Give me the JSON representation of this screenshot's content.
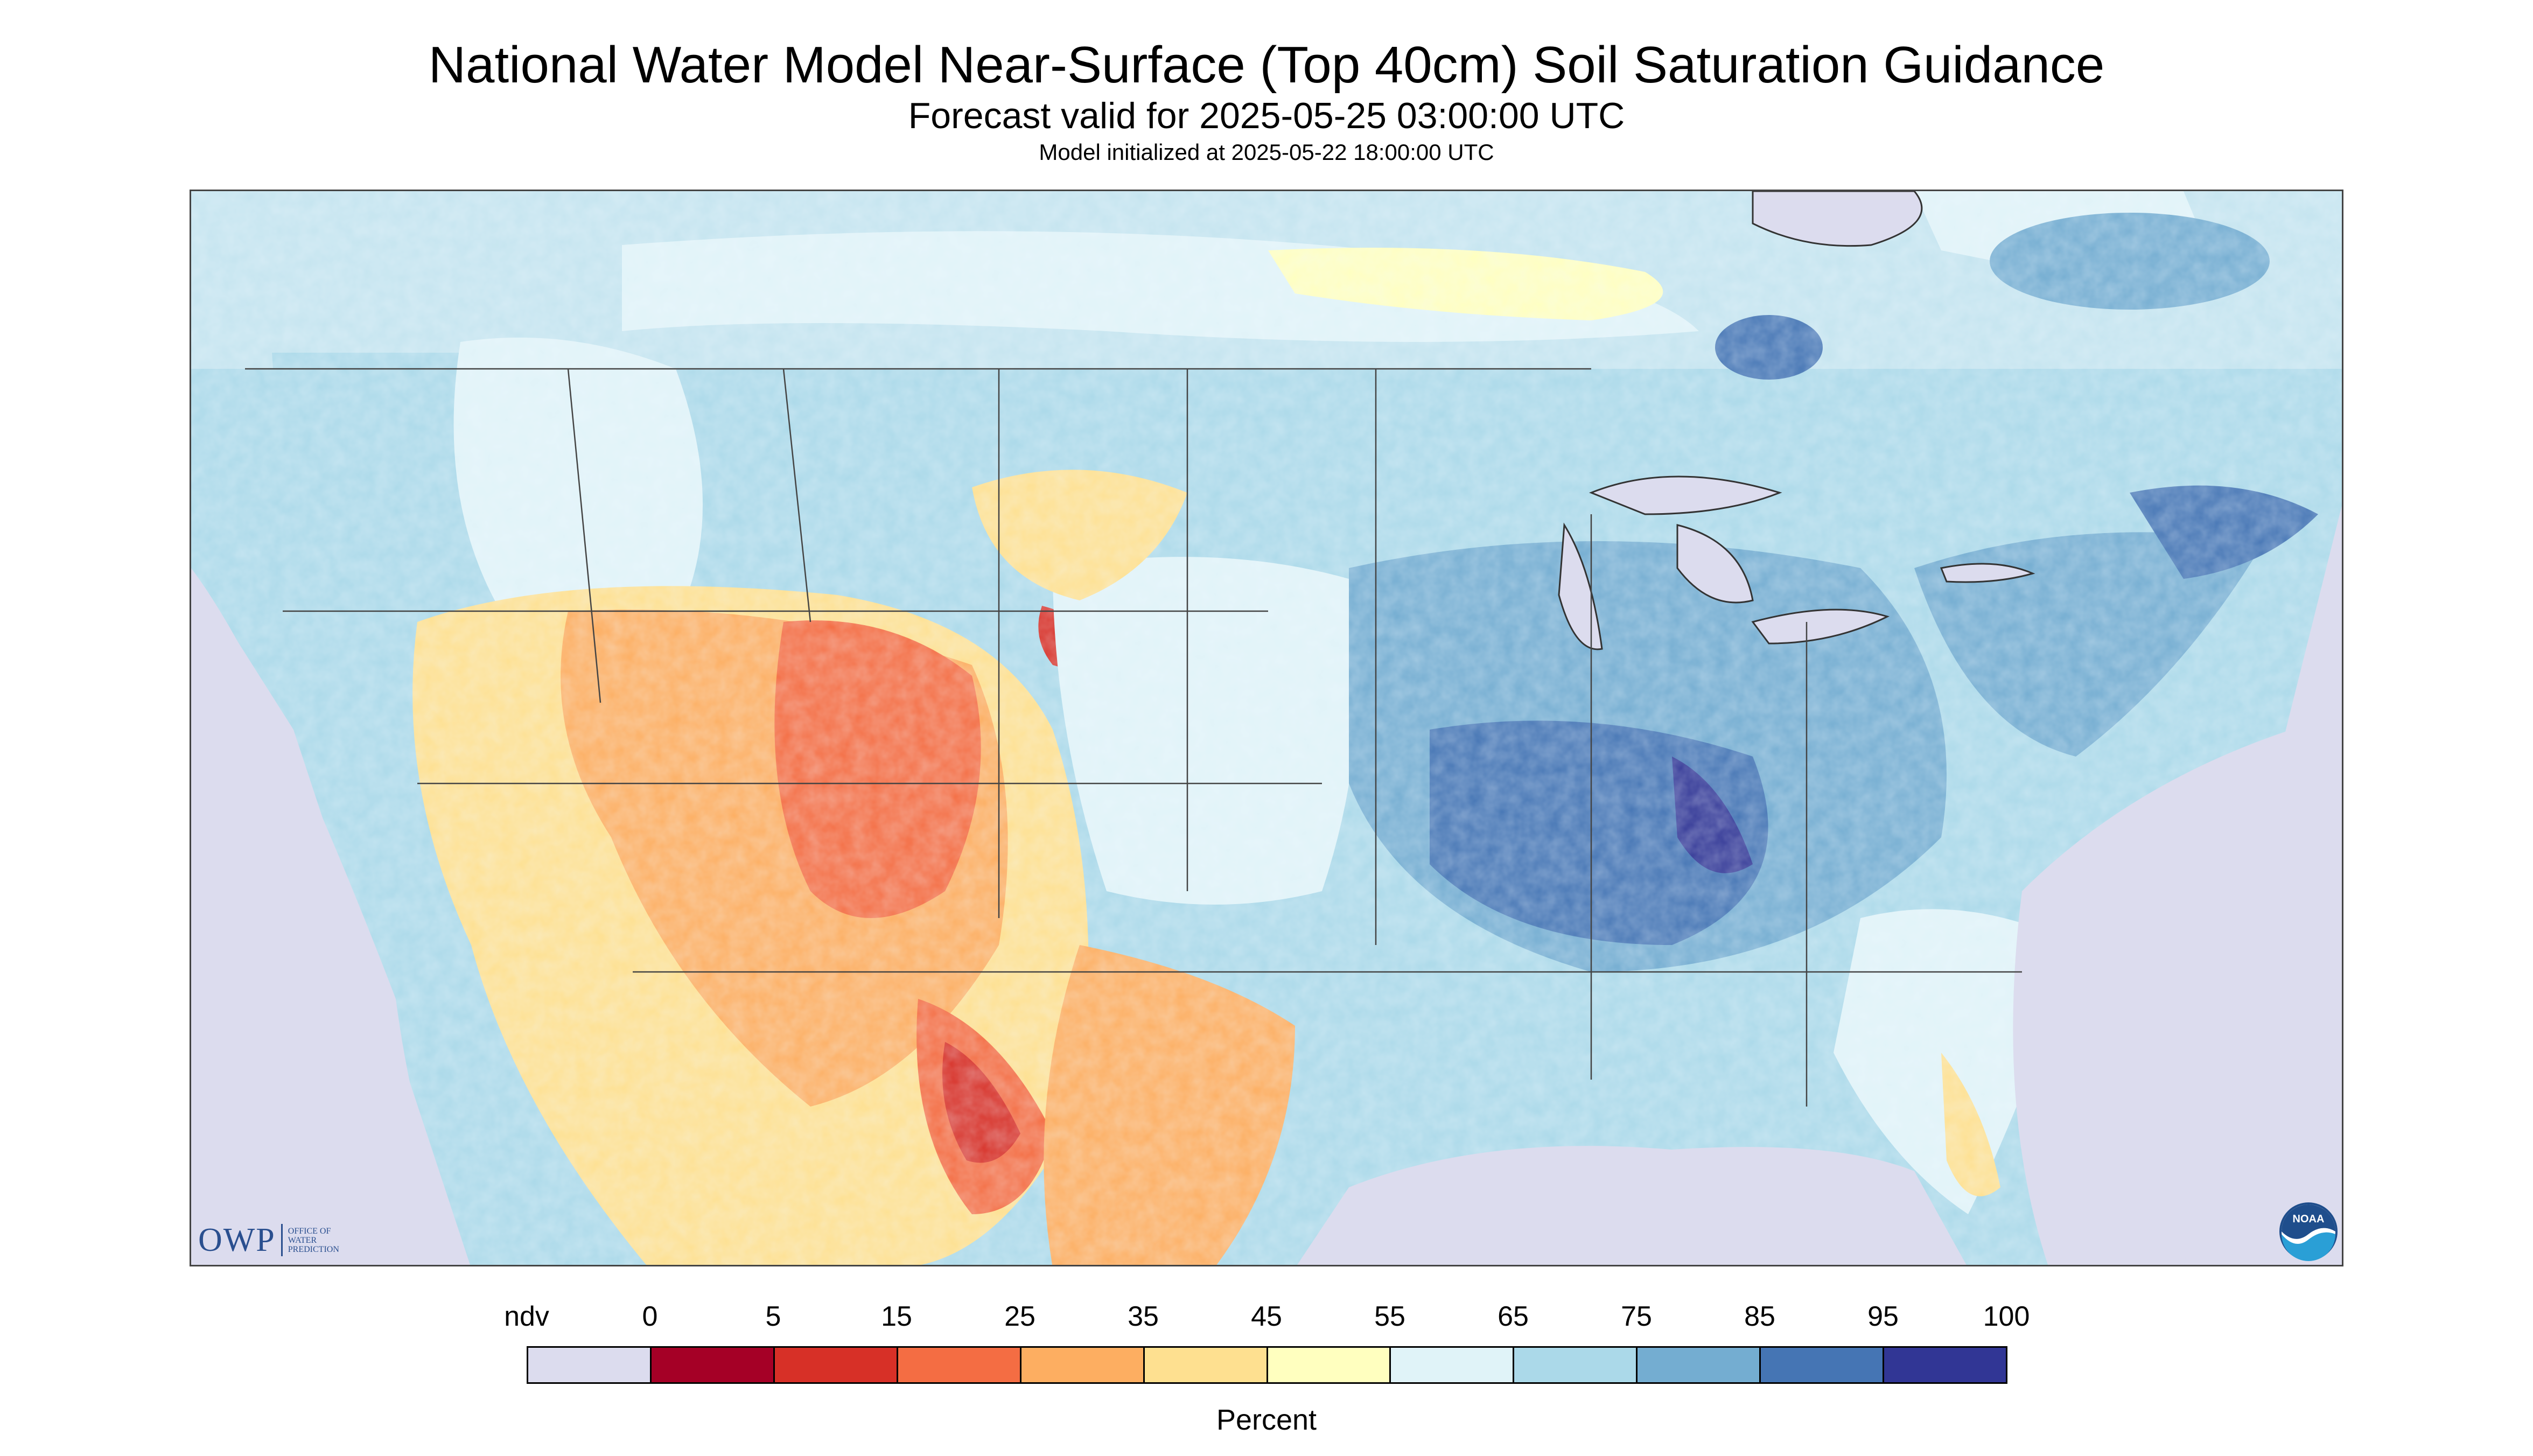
{
  "title": "National Water Model Near-Surface (Top 40cm) Soil Saturation Guidance",
  "subtitle": "Forecast valid for 2025-05-25 03:00:00 UTC",
  "init_line": "Model initialized at 2025-05-22 18:00:00 UTC",
  "logos": {
    "owp_letters": "OWP",
    "owp_lines": [
      "OFFICE OF",
      "WATER",
      "PREDICTION"
    ],
    "noaa": "NOAA"
  },
  "legend": {
    "unit": "Percent",
    "labels": [
      "ndv",
      "0",
      "5",
      "15",
      "25",
      "35",
      "45",
      "55",
      "65",
      "75",
      "85",
      "95",
      "100"
    ],
    "colors": [
      "#dcdcee",
      "#a50026",
      "#d73027",
      "#f46d43",
      "#fdae61",
      "#fee090",
      "#ffffbf",
      "#e0f3f8",
      "#abd9e9",
      "#74add1",
      "#4575b4",
      "#313695"
    ]
  }
}
